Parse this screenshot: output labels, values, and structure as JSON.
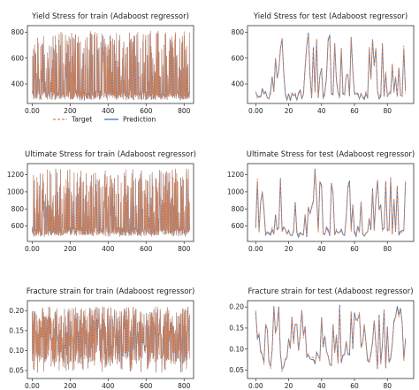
{
  "colors": {
    "target": "#dd8452",
    "prediction": "#4c72b0",
    "frame": "#333333"
  },
  "legend": {
    "target_label": "Target",
    "prediction_label": "Prediction"
  },
  "chart_data": [
    {
      "type": "line",
      "title": "Yield Stress for train (Adaboost regressor)",
      "xlim": [
        -25,
        850
      ],
      "ylim": [
        250,
        850
      ],
      "xticks": [
        0,
        200,
        400,
        600,
        800
      ],
      "yticks": [
        400,
        600,
        800
      ],
      "n_points": 830,
      "y_range": [
        270,
        810
      ],
      "series": [
        {
          "name": "Target",
          "style": "dashed"
        },
        {
          "name": "Prediction",
          "style": "solid"
        }
      ],
      "legend": "below-plot"
    },
    {
      "type": "line",
      "title": "Yield Stress for test (Adaboost regressor)",
      "xlim": [
        -5,
        96
      ],
      "ylim": [
        250,
        850
      ],
      "xticks": [
        0,
        20,
        40,
        60,
        80
      ],
      "yticks": [
        400,
        600,
        800
      ],
      "n_points": 92,
      "y_range": [
        270,
        810
      ],
      "series": [
        {
          "name": "Target",
          "style": "dashed"
        },
        {
          "name": "Prediction",
          "style": "solid"
        }
      ]
    },
    {
      "type": "line",
      "title": "Ultimate Stress for train (Adaboost regressor)",
      "xlim": [
        -25,
        850
      ],
      "ylim": [
        420,
        1330
      ],
      "xticks": [
        0,
        200,
        400,
        600,
        800
      ],
      "yticks": [
        600,
        800,
        1000,
        1200
      ],
      "n_points": 830,
      "y_range": [
        470,
        1270
      ],
      "series": [
        {
          "name": "Target",
          "style": "dashed"
        },
        {
          "name": "Prediction",
          "style": "solid"
        }
      ]
    },
    {
      "type": "line",
      "title": "Ultimate Stress for test (Adaboost regressor)",
      "xlim": [
        -5,
        96
      ],
      "ylim": [
        420,
        1330
      ],
      "xticks": [
        0,
        20,
        40,
        60,
        80
      ],
      "yticks": [
        600,
        800,
        1000,
        1200
      ],
      "n_points": 92,
      "y_range": [
        470,
        1270
      ],
      "series": [
        {
          "name": "Target",
          "style": "dashed"
        },
        {
          "name": "Prediction",
          "style": "solid"
        }
      ]
    },
    {
      "type": "line",
      "title": "Fracture strain for train (Adaboost regressor)",
      "xlim": [
        -25,
        850
      ],
      "ylim": [
        0.03,
        0.225
      ],
      "xticks": [
        0,
        200,
        400,
        600,
        800
      ],
      "yticks": [
        0.05,
        0.1,
        0.15,
        0.2
      ],
      "n_points": 830,
      "y_range": [
        0.045,
        0.21
      ],
      "series": [
        {
          "name": "Target",
          "style": "dashed"
        },
        {
          "name": "Prediction",
          "style": "solid"
        }
      ]
    },
    {
      "type": "line",
      "title": "Fracture strain for test (Adaboost regressor)",
      "xlim": [
        -5,
        96
      ],
      "ylim": [
        0.03,
        0.215
      ],
      "xticks": [
        0,
        20,
        40,
        60,
        80
      ],
      "yticks": [
        0.05,
        0.1,
        0.15,
        0.2
      ],
      "n_points": 92,
      "y_range": [
        0.045,
        0.205
      ],
      "series": [
        {
          "name": "Target",
          "style": "dashed"
        },
        {
          "name": "Prediction",
          "style": "solid"
        }
      ]
    }
  ]
}
